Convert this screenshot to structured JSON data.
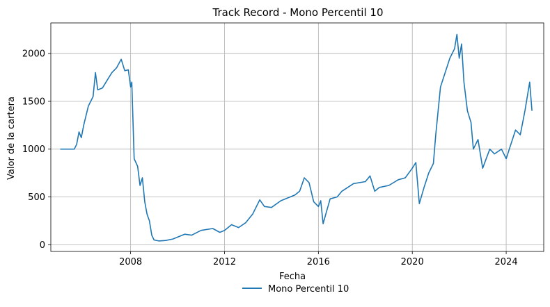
{
  "chart_data": {
    "type": "line",
    "title": "Track Record - Mono Percentil 10",
    "xlabel": "Fecha",
    "ylabel": "Valor de la cartera",
    "x_ticks": [
      "2008",
      "2012",
      "2016",
      "2020",
      "2024"
    ],
    "y_ticks": [
      0,
      500,
      1000,
      1500,
      2000
    ],
    "xlim": [
      2004.6,
      2025.6
    ],
    "ylim": [
      -70,
      2320
    ],
    "grid": true,
    "legend": {
      "placement": "bottom-center"
    },
    "series": [
      {
        "name": "Mono Percentil 10",
        "color": "#1f77b4",
        "points": [
          [
            2005.0,
            1000
          ],
          [
            2005.4,
            1000
          ],
          [
            2005.6,
            1000
          ],
          [
            2005.7,
            1050
          ],
          [
            2005.8,
            1180
          ],
          [
            2005.9,
            1120
          ],
          [
            2006.0,
            1250
          ],
          [
            2006.2,
            1450
          ],
          [
            2006.4,
            1550
          ],
          [
            2006.5,
            1800
          ],
          [
            2006.6,
            1620
          ],
          [
            2006.8,
            1640
          ],
          [
            2007.0,
            1720
          ],
          [
            2007.2,
            1800
          ],
          [
            2007.4,
            1850
          ],
          [
            2007.6,
            1940
          ],
          [
            2007.75,
            1820
          ],
          [
            2007.9,
            1830
          ],
          [
            2008.0,
            1650
          ],
          [
            2008.05,
            1700
          ],
          [
            2008.1,
            1300
          ],
          [
            2008.15,
            900
          ],
          [
            2008.3,
            820
          ],
          [
            2008.4,
            620
          ],
          [
            2008.5,
            700
          ],
          [
            2008.6,
            450
          ],
          [
            2008.7,
            320
          ],
          [
            2008.8,
            250
          ],
          [
            2008.9,
            100
          ],
          [
            2009.0,
            50
          ],
          [
            2009.2,
            40
          ],
          [
            2009.5,
            45
          ],
          [
            2009.8,
            60
          ],
          [
            2010.0,
            80
          ],
          [
            2010.3,
            110
          ],
          [
            2010.6,
            100
          ],
          [
            2011.0,
            150
          ],
          [
            2011.5,
            170
          ],
          [
            2011.8,
            130
          ],
          [
            2012.0,
            150
          ],
          [
            2012.3,
            210
          ],
          [
            2012.6,
            180
          ],
          [
            2012.9,
            230
          ],
          [
            2013.2,
            320
          ],
          [
            2013.5,
            470
          ],
          [
            2013.7,
            400
          ],
          [
            2014.0,
            390
          ],
          [
            2014.4,
            460
          ],
          [
            2014.8,
            500
          ],
          [
            2015.0,
            520
          ],
          [
            2015.2,
            560
          ],
          [
            2015.4,
            700
          ],
          [
            2015.6,
            650
          ],
          [
            2015.8,
            450
          ],
          [
            2016.0,
            400
          ],
          [
            2016.1,
            460
          ],
          [
            2016.2,
            220
          ],
          [
            2016.35,
            350
          ],
          [
            2016.5,
            480
          ],
          [
            2016.8,
            500
          ],
          [
            2017.0,
            560
          ],
          [
            2017.5,
            640
          ],
          [
            2018.0,
            660
          ],
          [
            2018.2,
            720
          ],
          [
            2018.4,
            560
          ],
          [
            2018.6,
            600
          ],
          [
            2019.0,
            620
          ],
          [
            2019.4,
            680
          ],
          [
            2019.7,
            700
          ],
          [
            2020.0,
            800
          ],
          [
            2020.15,
            860
          ],
          [
            2020.3,
            430
          ],
          [
            2020.5,
            600
          ],
          [
            2020.7,
            750
          ],
          [
            2020.9,
            850
          ],
          [
            2021.0,
            1150
          ],
          [
            2021.2,
            1650
          ],
          [
            2021.4,
            1800
          ],
          [
            2021.6,
            1950
          ],
          [
            2021.8,
            2050
          ],
          [
            2021.9,
            2200
          ],
          [
            2022.0,
            1950
          ],
          [
            2022.1,
            2100
          ],
          [
            2022.2,
            1700
          ],
          [
            2022.35,
            1400
          ],
          [
            2022.5,
            1280
          ],
          [
            2022.6,
            1000
          ],
          [
            2022.8,
            1100
          ],
          [
            2023.0,
            800
          ],
          [
            2023.3,
            1000
          ],
          [
            2023.5,
            950
          ],
          [
            2023.8,
            1000
          ],
          [
            2024.0,
            900
          ],
          [
            2024.2,
            1050
          ],
          [
            2024.4,
            1200
          ],
          [
            2024.6,
            1150
          ],
          [
            2024.8,
            1400
          ],
          [
            2024.9,
            1550
          ],
          [
            2025.0,
            1700
          ],
          [
            2025.1,
            1400
          ]
        ]
      }
    ]
  }
}
